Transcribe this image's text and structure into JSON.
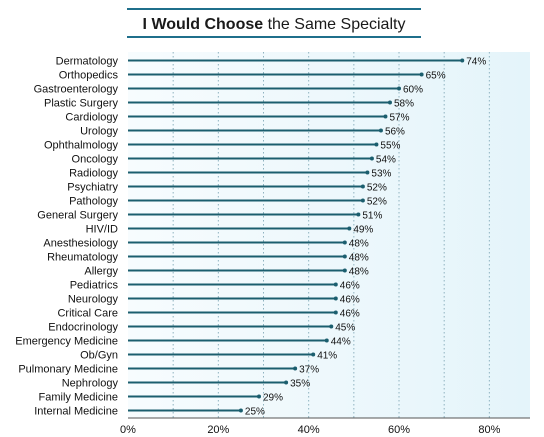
{
  "chart_data": {
    "type": "bar",
    "orientation": "horizontal",
    "title_bold": "I Would Choose",
    "title_rest": " the Same Specialty",
    "categories": [
      "Dermatology",
      "Orthopedics",
      "Gastroenterology",
      "Plastic Surgery",
      "Cardiology",
      "Urology",
      "Ophthalmology",
      "Oncology",
      "Radiology",
      "Psychiatry",
      "Pathology",
      "General Surgery",
      "HIV/ID",
      "Anesthesiology",
      "Rheumatology",
      "Allergy",
      "Pediatrics",
      "Neurology",
      "Critical Care",
      "Endocrinology",
      "Emergency Medicine",
      "Ob/Gyn",
      "Pulmonary Medicine",
      "Nephrology",
      "Family Medicine",
      "Internal Medicine"
    ],
    "values": [
      74,
      65,
      60,
      58,
      57,
      56,
      55,
      54,
      53,
      52,
      52,
      51,
      49,
      48,
      48,
      48,
      46,
      46,
      46,
      45,
      44,
      41,
      37,
      35,
      29,
      25
    ],
    "value_suffix": "%",
    "xlim": [
      0,
      89
    ],
    "xticks": [
      0,
      20,
      40,
      60,
      80
    ],
    "xtick_labels": [
      "0%",
      "20%",
      "40%",
      "60%",
      "80%"
    ],
    "gridlines": [
      10,
      20,
      30,
      40,
      50,
      60,
      70,
      80
    ],
    "colors": {
      "bar": "#1b5e6e",
      "title_rule": "#1f6f8b",
      "plot_bg_light": "#f7fcfe",
      "plot_bg_dark": "#e4f4fa",
      "grid": "#8fb3c0"
    }
  }
}
